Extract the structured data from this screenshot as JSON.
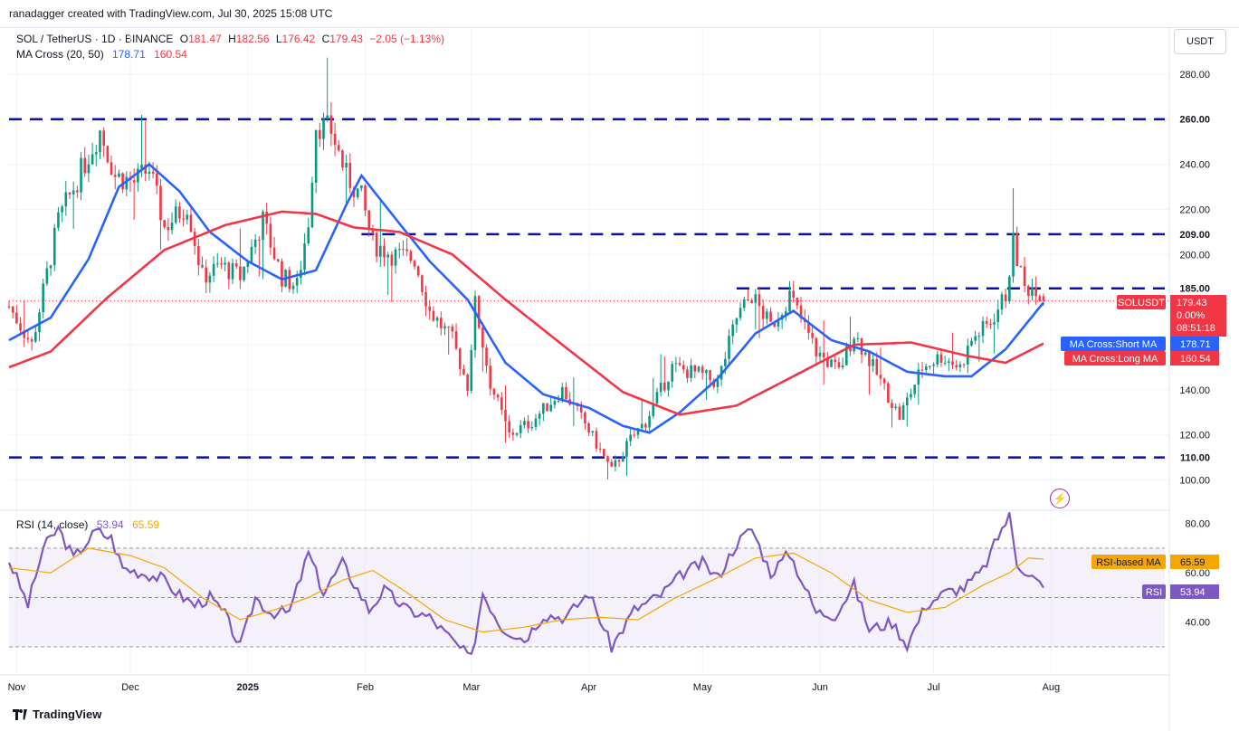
{
  "header": {
    "attribution": "ranadagger created with TradingView.com, Jul 30, 2025 15:08 UTC",
    "symbol": "SOL / TetherUS · 1D · BINANCE",
    "ohlc": [
      {
        "k": "O",
        "v": "181.47"
      },
      {
        "k": "H",
        "v": "182.56"
      },
      {
        "k": "L",
        "v": "176.42"
      },
      {
        "k": "C",
        "v": "179.43"
      }
    ],
    "change": "−2.05 (−1.13%)",
    "ma_label": "MA Cross (20, 50)",
    "ma_short": "178.71",
    "ma_long": "160.54",
    "rsi_label": "RSI (14, close)",
    "rsi_value": "53.94",
    "rsi_ma_value": "65.59",
    "currency": "USDT",
    "brand": "TradingView"
  },
  "colors": {
    "up": "#089981",
    "down": "#f23645",
    "ma_short": "#2962ff",
    "ma_long": "#f23645",
    "level": "#0a0fa8",
    "rsi": "#7e57c2",
    "rsi_ma": "#f7a600",
    "rsi_band": "#ede7f6"
  },
  "chart_data": [
    {
      "type": "candlestick",
      "title": "SOL / TetherUS · 1D · BINANCE",
      "x_ticks": [
        "Nov",
        "Dec",
        "2025",
        "Feb",
        "Mar",
        "Apr",
        "May",
        "Jun",
        "Jul",
        "Aug"
      ],
      "y_ticks": [
        "100.00",
        "120.00",
        "140.00",
        "160.00",
        "180.00",
        "200.00",
        "220.00",
        "240.00",
        "260.00",
        "280.00"
      ],
      "ylim": [
        87,
        300
      ],
      "x_range": [
        "2024-10-30",
        "2025-08-31"
      ],
      "grid": true,
      "levels": [
        {
          "value": 260,
          "label": "260.00"
        },
        {
          "value": 209,
          "label": "209.00",
          "from": "2025-01-31"
        },
        {
          "value": 185,
          "label": "185.00",
          "from": "2025-05-10"
        },
        {
          "value": 110,
          "label": "110.00"
        }
      ],
      "ohlc_anchors": [
        [
          "2024-10-30",
          177
        ],
        [
          "2024-11-05",
          160
        ],
        [
          "2024-11-12",
          215
        ],
        [
          "2024-11-18",
          237
        ],
        [
          "2024-11-23",
          255
        ],
        [
          "2024-11-27",
          235
        ],
        [
          "2024-12-02",
          232
        ],
        [
          "2024-12-06",
          238
        ],
        [
          "2024-12-10",
          212
        ],
        [
          "2024-12-16",
          222
        ],
        [
          "2024-12-20",
          190
        ],
        [
          "2024-12-25",
          195
        ],
        [
          "2024-12-30",
          190
        ],
        [
          "2025-01-05",
          215
        ],
        [
          "2025-01-10",
          190
        ],
        [
          "2025-01-14",
          186
        ],
        [
          "2025-01-17",
          215
        ],
        [
          "2025-01-19",
          258
        ],
        [
          "2025-01-23",
          255
        ],
        [
          "2025-01-27",
          235
        ],
        [
          "2025-01-31",
          225
        ],
        [
          "2025-02-03",
          205
        ],
        [
          "2025-02-08",
          200
        ],
        [
          "2025-02-14",
          198
        ],
        [
          "2025-02-18",
          175
        ],
        [
          "2025-02-24",
          162
        ],
        [
          "2025-02-28",
          142
        ],
        [
          "2025-03-02",
          178
        ],
        [
          "2025-03-06",
          143
        ],
        [
          "2025-03-11",
          120
        ],
        [
          "2025-03-17",
          126
        ],
        [
          "2025-03-25",
          140
        ],
        [
          "2025-03-31",
          125
        ],
        [
          "2025-04-07",
          104
        ],
        [
          "2025-04-12",
          118
        ],
        [
          "2025-04-16",
          126
        ],
        [
          "2025-04-23",
          150
        ],
        [
          "2025-04-30",
          147
        ],
        [
          "2025-05-05",
          143
        ],
        [
          "2025-05-10",
          172
        ],
        [
          "2025-05-14",
          182
        ],
        [
          "2025-05-19",
          168
        ],
        [
          "2025-05-24",
          182
        ],
        [
          "2025-05-31",
          157
        ],
        [
          "2025-06-06",
          148
        ],
        [
          "2025-06-10",
          165
        ],
        [
          "2025-06-15",
          150
        ],
        [
          "2025-06-22",
          128
        ],
        [
          "2025-06-28",
          150
        ],
        [
          "2025-07-03",
          155
        ],
        [
          "2025-07-08",
          150
        ],
        [
          "2025-07-11",
          162
        ],
        [
          "2025-07-16",
          170
        ],
        [
          "2025-07-20",
          182
        ],
        [
          "2025-07-22",
          205
        ],
        [
          "2025-07-25",
          185
        ],
        [
          "2025-07-28",
          186
        ],
        [
          "2025-07-30",
          179.43
        ]
      ],
      "series": [
        {
          "name": "MA Cross:Short MA",
          "last": 178.71,
          "anchors": [
            [
              "2024-10-30",
              162
            ],
            [
              "2024-11-10",
              172
            ],
            [
              "2024-11-20",
              198
            ],
            [
              "2024-11-28",
              230
            ],
            [
              "2024-12-06",
              240
            ],
            [
              "2024-12-14",
              228
            ],
            [
              "2024-12-22",
              210
            ],
            [
              "2025-01-01",
              197
            ],
            [
              "2025-01-10",
              189
            ],
            [
              "2025-01-19",
              193
            ],
            [
              "2025-01-27",
              222
            ],
            [
              "2025-01-31",
              235
            ],
            [
              "2025-02-08",
              218
            ],
            [
              "2025-02-18",
              197
            ],
            [
              "2025-02-28",
              180
            ],
            [
              "2025-03-10",
              152
            ],
            [
              "2025-03-20",
              138
            ],
            [
              "2025-04-01",
              132
            ],
            [
              "2025-04-10",
              124
            ],
            [
              "2025-04-17",
              121
            ],
            [
              "2025-04-25",
              130
            ],
            [
              "2025-05-05",
              145
            ],
            [
              "2025-05-15",
              165
            ],
            [
              "2025-05-25",
              175
            ],
            [
              "2025-06-04",
              162
            ],
            [
              "2025-06-14",
              157
            ],
            [
              "2025-06-24",
              148
            ],
            [
              "2025-07-04",
              146
            ],
            [
              "2025-07-11",
              146
            ],
            [
              "2025-07-20",
              158
            ],
            [
              "2025-07-30",
              178.71
            ]
          ]
        },
        {
          "name": "MA Cross:Long MA",
          "last": 160.54,
          "anchors": [
            [
              "2024-10-30",
              150
            ],
            [
              "2024-11-10",
              157
            ],
            [
              "2024-11-25",
              181
            ],
            [
              "2024-12-10",
              202
            ],
            [
              "2024-12-26",
              213
            ],
            [
              "2025-01-10",
              219
            ],
            [
              "2025-01-19",
              218
            ],
            [
              "2025-01-29",
              212
            ],
            [
              "2025-02-10",
              210
            ],
            [
              "2025-02-24",
              200
            ],
            [
              "2025-03-10",
              180
            ],
            [
              "2025-03-25",
              160
            ],
            [
              "2025-04-10",
              139
            ],
            [
              "2025-04-25",
              129
            ],
            [
              "2025-05-10",
              133
            ],
            [
              "2025-05-25",
              146
            ],
            [
              "2025-06-10",
              160
            ],
            [
              "2025-06-25",
              161
            ],
            [
              "2025-07-10",
              155
            ],
            [
              "2025-07-20",
              152
            ],
            [
              "2025-07-30",
              160.54
            ]
          ]
        }
      ],
      "axis_tags": [
        {
          "label": "SOLUSDT",
          "value": "179.43",
          "extra": [
            "0.00%",
            "08:51:18"
          ]
        },
        {
          "label": "MA Cross:Short MA",
          "value": "178.71"
        },
        {
          "label": "MA Cross:Long MA",
          "value": "160.54"
        }
      ]
    },
    {
      "type": "line",
      "title": "RSI (14, close)",
      "y_ticks": [
        "40.00",
        "60.00",
        "80.00"
      ],
      "ylim": [
        19,
        85
      ],
      "band": [
        30,
        70
      ],
      "midline": 50,
      "series": [
        {
          "name": "RSI",
          "last": 53.94,
          "anchors": [
            [
              "2024-10-30",
              65
            ],
            [
              "2024-11-04",
              47
            ],
            [
              "2024-11-08",
              70
            ],
            [
              "2024-11-12",
              78
            ],
            [
              "2024-11-16",
              66
            ],
            [
              "2024-11-22",
              77
            ],
            [
              "2024-11-26",
              74
            ],
            [
              "2024-11-29",
              62
            ],
            [
              "2024-12-04",
              60
            ],
            [
              "2024-12-09",
              58
            ],
            [
              "2024-12-14",
              51
            ],
            [
              "2024-12-18",
              47
            ],
            [
              "2024-12-22",
              50
            ],
            [
              "2024-12-26",
              43
            ],
            [
              "2024-12-30",
              30
            ],
            [
              "2025-01-03",
              50
            ],
            [
              "2025-01-07",
              44
            ],
            [
              "2025-01-12",
              44
            ],
            [
              "2025-01-17",
              68
            ],
            [
              "2025-01-21",
              52
            ],
            [
              "2025-01-26",
              64
            ],
            [
              "2025-02-02",
              45
            ],
            [
              "2025-02-06",
              53
            ],
            [
              "2025-02-12",
              45
            ],
            [
              "2025-02-18",
              42
            ],
            [
              "2025-02-25",
              31
            ],
            [
              "2025-03-01",
              25
            ],
            [
              "2025-03-04",
              52
            ],
            [
              "2025-03-09",
              38
            ],
            [
              "2025-03-15",
              33
            ],
            [
              "2025-03-20",
              43
            ],
            [
              "2025-03-26",
              42
            ],
            [
              "2025-04-01",
              52
            ],
            [
              "2025-04-07",
              30
            ],
            [
              "2025-04-13",
              45
            ],
            [
              "2025-04-20",
              51
            ],
            [
              "2025-04-26",
              60
            ],
            [
              "2025-05-01",
              64
            ],
            [
              "2025-05-05",
              58
            ],
            [
              "2025-05-10",
              72
            ],
            [
              "2025-05-14",
              78
            ],
            [
              "2025-05-19",
              60
            ],
            [
              "2025-05-24",
              68
            ],
            [
              "2025-05-31",
              44
            ],
            [
              "2025-06-05",
              43
            ],
            [
              "2025-06-10",
              55
            ],
            [
              "2025-06-14",
              37
            ],
            [
              "2025-06-20",
              40
            ],
            [
              "2025-06-24",
              31
            ],
            [
              "2025-06-29",
              47
            ],
            [
              "2025-07-04",
              52
            ],
            [
              "2025-07-09",
              54
            ],
            [
              "2025-07-14",
              61
            ],
            [
              "2025-07-19",
              78
            ],
            [
              "2025-07-21",
              83
            ],
            [
              "2025-07-23",
              64
            ],
            [
              "2025-07-26",
              60
            ],
            [
              "2025-07-30",
              53.94
            ]
          ]
        },
        {
          "name": "RSI-based MA",
          "last": 65.59,
          "anchors": [
            [
              "2024-10-30",
              62
            ],
            [
              "2024-11-10",
              60
            ],
            [
              "2024-11-20",
              70
            ],
            [
              "2024-12-01",
              67
            ],
            [
              "2024-12-10",
              62
            ],
            [
              "2024-12-20",
              50
            ],
            [
              "2024-12-30",
              41
            ],
            [
              "2025-01-08",
              45
            ],
            [
              "2025-01-17",
              50
            ],
            [
              "2025-01-26",
              57
            ],
            [
              "2025-02-03",
              61
            ],
            [
              "2025-02-12",
              52
            ],
            [
              "2025-02-22",
              41
            ],
            [
              "2025-03-04",
              36
            ],
            [
              "2025-03-15",
              38
            ],
            [
              "2025-03-25",
              41
            ],
            [
              "2025-04-04",
              42
            ],
            [
              "2025-04-14",
              41
            ],
            [
              "2025-04-24",
              50
            ],
            [
              "2025-05-05",
              58
            ],
            [
              "2025-05-15",
              66
            ],
            [
              "2025-05-25",
              68
            ],
            [
              "2025-06-04",
              60
            ],
            [
              "2025-06-14",
              49
            ],
            [
              "2025-06-24",
              44
            ],
            [
              "2025-07-04",
              46
            ],
            [
              "2025-07-14",
              55
            ],
            [
              "2025-07-21",
              60
            ],
            [
              "2025-07-26",
              66
            ],
            [
              "2025-07-30",
              65.59
            ]
          ]
        }
      ],
      "axis_tags": [
        {
          "label": "RSI-based MA",
          "value": "65.59"
        },
        {
          "label": "RSI",
          "value": "53.94"
        }
      ]
    }
  ]
}
